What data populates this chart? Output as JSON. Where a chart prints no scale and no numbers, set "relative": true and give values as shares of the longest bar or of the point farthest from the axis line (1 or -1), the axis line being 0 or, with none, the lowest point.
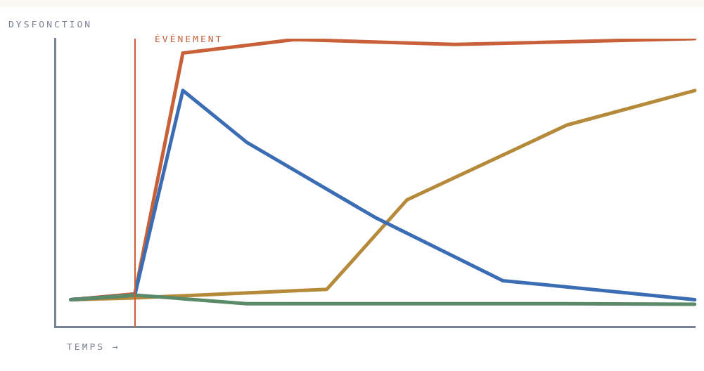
{
  "chart_data": {
    "type": "line",
    "relative": true,
    "xlabel": "TEMPS →",
    "ylabel": "DYSFONCTION",
    "annotations": [
      "ÉVÉNEMENT"
    ],
    "grid": false,
    "legend": false,
    "marker": "none",
    "line_style": "solid",
    "categories": [
      null,
      null,
      null,
      null,
      null,
      null,
      null,
      null,
      null,
      null,
      null,
      null,
      null,
      null,
      null,
      null,
      null,
      null,
      null,
      null,
      null,
      null,
      null,
      null,
      null,
      null,
      null,
      null,
      null,
      null,
      null,
      null,
      null,
      null,
      null,
      null,
      null,
      null,
      null,
      null,
      null
    ],
    "series": [
      {
        "color": "#5a8a68",
        "values": [
          null,
          0.094,
          null,
          null,
          null,
          0.11,
          null,
          null,
          null,
          null,
          null,
          null,
          0.08,
          null,
          null,
          null,
          null,
          null,
          null,
          null,
          null,
          null,
          0.08,
          null,
          null,
          null,
          null,
          null,
          null,
          null,
          null,
          null,
          0.08,
          null,
          null,
          null,
          null,
          null,
          null,
          null,
          0.078
        ]
      },
      {
        "color": "#3b6db5",
        "values": [
          null,
          0.094,
          null,
          null,
          null,
          0.11,
          null,
          null,
          0.82,
          null,
          null,
          null,
          0.64,
          null,
          null,
          null,
          null,
          null,
          null,
          null,
          0.38,
          null,
          null,
          null,
          null,
          null,
          null,
          null,
          0.16,
          null,
          null,
          null,
          null,
          null,
          null,
          null,
          null,
          null,
          null,
          null,
          0.094
        ]
      },
      {
        "color": "#c8603a",
        "values": [
          null,
          0.094,
          null,
          null,
          null,
          0.114,
          null,
          null,
          0.95,
          null,
          null,
          null,
          null,
          null,
          null,
          0.997,
          null,
          null,
          null,
          null,
          null,
          null,
          null,
          null,
          null,
          0.98,
          null,
          null,
          null,
          null,
          null,
          null,
          null,
          null,
          null,
          null,
          null,
          null,
          null,
          null,
          1
        ]
      },
      {
        "color": "#b58a3a",
        "values": [
          null,
          0.094,
          null,
          null,
          null,
          0.1,
          null,
          null,
          null,
          null,
          null,
          null,
          null,
          null,
          null,
          null,
          null,
          0.13,
          null,
          null,
          null,
          null,
          0.44,
          null,
          null,
          null,
          null,
          null,
          null,
          null,
          null,
          null,
          0.7,
          null,
          null,
          null,
          null,
          null,
          null,
          null,
          0.82
        ]
      }
    ]
  }
}
